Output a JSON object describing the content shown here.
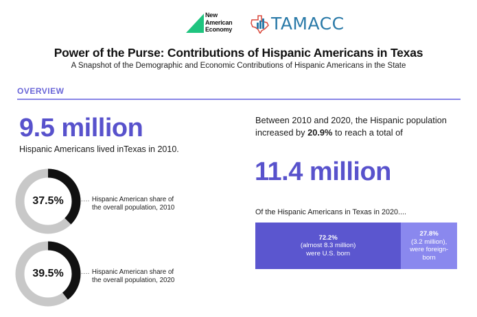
{
  "logos": {
    "left_org": [
      "New",
      "American",
      "Economy"
    ],
    "right_org": "TAMACC"
  },
  "title": "Power of the Purse: Contributions of Hispanic Americans in Texas",
  "subtitle": "A Snapshot of the Demographic and Economic Contributions of Hispanic Americans in the State",
  "overview": {
    "heading": "OVERVIEW",
    "population_2010": "9.5 million",
    "population_2010_caption": "Hispanic Americans lived inTexas in 2010.",
    "shares": [
      {
        "value": "37.5%",
        "fraction": 0.375,
        "dots": "....",
        "line1": "Hispanic American share of",
        "line2": "the overall population, 2010"
      },
      {
        "value": "39.5%",
        "fraction": 0.395,
        "dots": "....",
        "line1": "Hispanic American share of",
        "line2": "the overall population, 2020"
      }
    ],
    "growth_text_start": "Between 2010 and 2020, the Hispanic population increased by ",
    "growth_pct": "20.9%",
    "growth_text_end": " to reach a total of",
    "population_2020": "11.4 million",
    "nativity_caption": "Of the Hispanic Americans in Texas in 2020....",
    "nativity": [
      {
        "pct": "72.2%",
        "fraction": 0.722,
        "line1": "(almost 8.3 million)",
        "line2": "were U.S. born"
      },
      {
        "pct": "27.8%",
        "fraction": 0.278,
        "line1": "(3.2 million),",
        "line2": "were foreign-",
        "line3": "born"
      }
    ]
  },
  "colors": {
    "accent": "#5852cc",
    "accent_light": "#8a88ee",
    "donut_fill": "#111111",
    "donut_track": "#c8c8c8",
    "logo_teal": "#1fc47f",
    "logo_blue": "#2a7aa8",
    "logo_red": "#d9473a"
  }
}
